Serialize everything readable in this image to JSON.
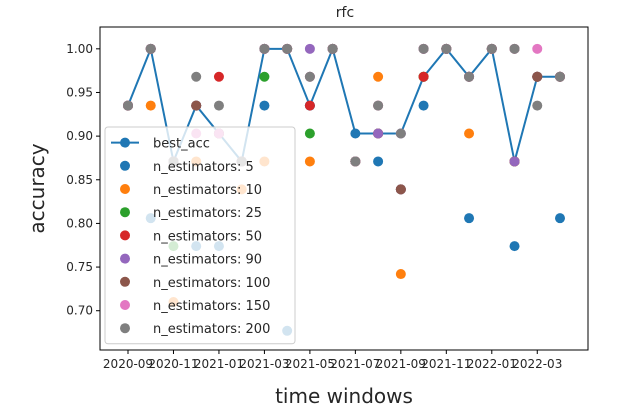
{
  "chart_data": {
    "type": "scatter",
    "title": "rfc",
    "xlabel": "time windows",
    "ylabel": "accuracy",
    "ylim": [
      0.655,
      1.025
    ],
    "y_ticks": [
      0.7,
      0.75,
      0.8,
      0.85,
      0.9,
      0.95,
      1.0
    ],
    "y_tick_labels": [
      "0.70",
      "0.75",
      "0.80",
      "0.85",
      "0.90",
      "0.95",
      "1.00"
    ],
    "x": [
      "2020-09",
      "2020-10",
      "2020-11",
      "2020-12",
      "2021-01",
      "2021-02",
      "2021-03",
      "2021-04",
      "2021-05",
      "2021-06",
      "2021-07",
      "2021-08",
      "2021-09",
      "2021-10",
      "2021-11",
      "2021-12",
      "2022-01",
      "2022-02",
      "2022-03",
      "2022-04"
    ],
    "x_ticks": [
      "2020-09",
      "2020-11",
      "2021-01",
      "2021-03",
      "2021-05",
      "2021-07",
      "2021-09",
      "2021-11",
      "2022-01",
      "2022-03"
    ],
    "x_tick_labels": [
      "2020-09",
      "2020-11",
      "2021-01",
      "2021-03",
      "2021-05",
      "2021-07",
      "2021-09",
      "2021-11",
      "2022-01",
      "2022-03"
    ],
    "legend_position": "lower-left",
    "grid": false,
    "best_acc": {
      "name": "best_acc",
      "color": "#1f77b4",
      "values": [
        0.935,
        1.0,
        0.871,
        0.935,
        0.903,
        0.871,
        1.0,
        1.0,
        0.935,
        1.0,
        0.903,
        0.903,
        0.903,
        0.968,
        1.0,
        0.968,
        1.0,
        0.871,
        0.968,
        0.968
      ]
    },
    "series": [
      {
        "name": "n_estimators: 5",
        "color": "#1f77b4",
        "values": [
          0.935,
          0.806,
          0.871,
          0.774,
          0.774,
          0.871,
          0.935,
          0.677,
          0.935,
          1.0,
          0.871,
          0.871,
          0.839,
          0.935,
          1.0,
          0.806,
          1.0,
          0.774,
          0.968,
          0.806
        ]
      },
      {
        "name": "n_estimators: 10",
        "color": "#ff7f0e",
        "values": [
          0.935,
          0.935,
          0.71,
          0.871,
          0.903,
          0.839,
          0.871,
          1.0,
          0.871,
          1.0,
          0.871,
          0.968,
          0.742,
          0.968,
          1.0,
          0.903,
          1.0,
          0.871,
          0.968,
          0.968
        ]
      },
      {
        "name": "n_estimators: 25",
        "color": "#2ca02c",
        "values": [
          0.935,
          1.0,
          0.774,
          0.935,
          0.903,
          0.871,
          0.968,
          1.0,
          0.903,
          1.0,
          0.871,
          0.903,
          0.839,
          0.968,
          1.0,
          0.968,
          1.0,
          0.871,
          0.968,
          0.968
        ]
      },
      {
        "name": "n_estimators: 50",
        "color": "#d62728",
        "values": [
          0.935,
          1.0,
          0.871,
          0.935,
          0.968,
          0.871,
          1.0,
          1.0,
          0.935,
          1.0,
          0.871,
          0.903,
          0.839,
          0.968,
          1.0,
          0.968,
          1.0,
          0.871,
          0.968,
          0.968
        ]
      },
      {
        "name": "n_estimators: 90",
        "color": "#9467bd",
        "values": [
          0.935,
          1.0,
          0.871,
          0.935,
          0.903,
          0.871,
          1.0,
          1.0,
          1.0,
          1.0,
          0.871,
          0.903,
          0.839,
          1.0,
          1.0,
          0.968,
          1.0,
          0.871,
          0.968,
          0.968
        ]
      },
      {
        "name": "n_estimators: 100",
        "color": "#8c564b",
        "values": [
          0.935,
          1.0,
          0.871,
          0.935,
          0.903,
          0.871,
          1.0,
          1.0,
          0.968,
          1.0,
          0.871,
          0.935,
          0.839,
          1.0,
          1.0,
          0.968,
          1.0,
          1.0,
          0.968,
          0.968
        ]
      },
      {
        "name": "n_estimators: 150",
        "color": "#e377c2",
        "values": [
          0.935,
          1.0,
          0.871,
          0.903,
          0.903,
          0.871,
          1.0,
          1.0,
          0.968,
          1.0,
          0.871,
          0.935,
          0.903,
          1.0,
          1.0,
          0.968,
          1.0,
          1.0,
          1.0,
          0.968
        ]
      },
      {
        "name": "n_estimators: 200",
        "color": "#7f7f7f",
        "values": [
          0.935,
          1.0,
          0.871,
          0.968,
          0.935,
          0.871,
          1.0,
          1.0,
          0.968,
          1.0,
          0.871,
          0.935,
          0.903,
          1.0,
          1.0,
          0.968,
          1.0,
          1.0,
          0.935,
          0.968
        ]
      }
    ]
  }
}
